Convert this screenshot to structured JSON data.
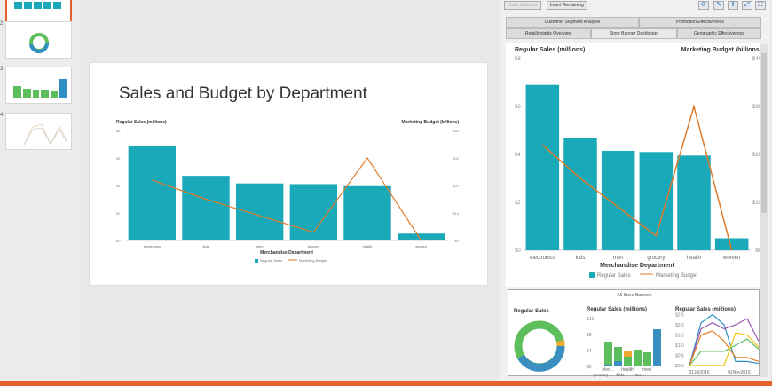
{
  "thumbnails": [
    {
      "num": "1"
    },
    {
      "num": "2"
    },
    {
      "num": "3"
    },
    {
      "num": "4"
    }
  ],
  "slide": {
    "title": "Sales and Budget by Department"
  },
  "toolbar": {
    "insert_selection": "Insert Selection",
    "insert_remaining": "Insert Remaining",
    "icons": [
      "refresh-icon",
      "bookmark-icon",
      "pause-icon",
      "expand-icon",
      "fullscreen-icon"
    ]
  },
  "tabs": {
    "row1": [
      "Customer Segment Analysis",
      "Promotion Effectiveness"
    ],
    "row2": [
      "RetailInsights Overview",
      "Store Banner Dashboard",
      "Geographic Effectiveness"
    ],
    "active": "Store Banner Dashboard"
  },
  "colors": {
    "bars": "#1aa9b8",
    "line": "#e07b2a",
    "accent": "#e8612c"
  },
  "chart_data": {
    "type": "bar",
    "categories": [
      "electronics",
      "kids",
      "men",
      "grocery",
      "health",
      "women"
    ],
    "series": [
      {
        "name": "Regular Sales",
        "type": "bar",
        "values": [
          6.9,
          4.7,
          4.15,
          4.1,
          3.95,
          0.5
        ]
      },
      {
        "name": "Marketing Budget",
        "type": "line",
        "values": [
          22,
          15,
          9,
          3,
          30,
          0
        ]
      }
    ],
    "ylabel": "Regular Sales (millions)",
    "y2label": "Marketing Budget (billions)",
    "xlabel": "Merchandise Department",
    "ylim": [
      0,
      8
    ],
    "y2lim": [
      0,
      40
    ],
    "yticks": [
      "$0",
      "$2",
      "$4",
      "$6",
      "$8"
    ],
    "y2ticks": [
      "$0",
      "$10",
      "$20",
      "$30",
      "$40"
    ]
  },
  "bottom": {
    "title": "All Store Banners",
    "donut_title": "Regular Sales",
    "bar_title": "Regular Sales (millions)",
    "line_title": "Regular Sales (millions)",
    "bar_yticks": [
      "$0",
      "$4",
      "$8",
      "$12"
    ],
    "bar_xticks": [
      "elec...",
      "health",
      "men",
      "grocery",
      "kids",
      "wo..."
    ],
    "line_yticks": [
      "$0.0",
      "$0.5",
      "$1.0",
      "$1.5",
      "$2.0",
      "$2.5"
    ],
    "line_xticks": [
      "01Jul2015",
      "01Nov2015"
    ]
  }
}
